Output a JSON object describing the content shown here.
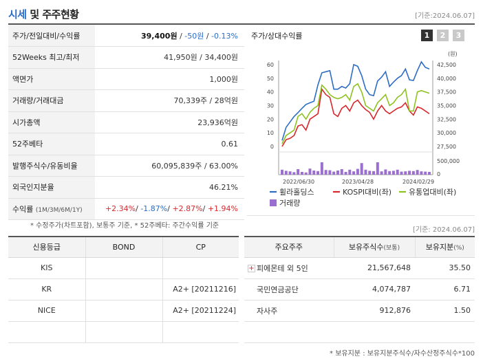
{
  "header": {
    "title_part1": "시세",
    "title_part2": " 및 주주현황",
    "base_date": "[기준:2024.06.07]"
  },
  "quote": {
    "price_label": "주가/전일대비/수익률",
    "price": "39,400원",
    "change": "-50원",
    "change_pct": "-0.13%",
    "week52_label": "52Weeks 최고/최저",
    "week52_value": "41,950원 / 34,400원",
    "face_label": "액면가",
    "face_value": "1,000원",
    "volume_label": "거래량/거래대금",
    "volume_value": "70,339주 / 28억원",
    "mcap_label": "시가총액",
    "mcap_value": "23,936억원",
    "beta_label": "52주베타",
    "beta_value": "0.61",
    "shares_label": "발행주식수/유동비율",
    "shares_value": "60,095,839주 / 63.00%",
    "foreign_label": "외국인지분율",
    "foreign_value": "46.21%",
    "returns_label": "수익률",
    "returns_sub": "(1M/3M/6M/1Y)",
    "returns": [
      "+2.34%",
      "-1.87%",
      "+2.87%",
      "+1.94%"
    ]
  },
  "chart_panel": {
    "title": "주가/상대수익률",
    "buttons": [
      "1",
      "2",
      "3"
    ]
  },
  "chart_data": {
    "type": "line",
    "title": "",
    "x_ticks": [
      "2022/06/30",
      "2023/04/28",
      "2024/02/29"
    ],
    "left_axis": {
      "label": "",
      "min": 0,
      "max": 60,
      "ticks": [
        "0",
        "10",
        "20",
        "30",
        "40",
        "50",
        "60"
      ]
    },
    "right_axis": {
      "label": "(원)",
      "min": 27500,
      "max": 42500,
      "ticks": [
        "27,500",
        "30,000",
        "32,500",
        "35,000",
        "37,500",
        "40,000",
        "42,500"
      ]
    },
    "volume_axis": {
      "ticks": [
        "0",
        "500,000"
      ]
    },
    "series": [
      {
        "name": "휠라홀딩스",
        "color": "#2b6cc4",
        "axis": "price",
        "values": [
          28600,
          31000,
          32000,
          33000,
          33700,
          34500,
          35200,
          35500,
          35800,
          38800,
          41000,
          41200,
          41400,
          38000,
          38000,
          38500,
          38200,
          39000,
          42500,
          42200,
          40500,
          38000,
          37000,
          36800,
          39500,
          40200,
          41200,
          38500,
          39300,
          40000,
          40500,
          41700,
          39700,
          39600,
          41400,
          43000,
          42000,
          41700
        ]
      },
      {
        "name": "KOSPI대비(좌)",
        "color": "#d8262b",
        "axis": "left",
        "values": [
          0,
          5,
          6,
          8,
          15,
          16,
          12,
          20,
          22,
          24,
          42,
          38,
          36,
          24,
          22,
          28,
          30,
          26,
          32,
          34,
          30,
          27,
          25,
          20,
          26,
          30,
          26,
          24,
          26,
          28,
          29,
          32,
          26,
          23,
          29,
          28,
          26,
          24
        ]
      },
      {
        "name": "유통업대비(좌)",
        "color": "#8dc21f",
        "axis": "left",
        "values": [
          2,
          8,
          10,
          12,
          22,
          24,
          20,
          25,
          28,
          30,
          45,
          42,
          38,
          36,
          35,
          36,
          38,
          34,
          44,
          46,
          40,
          30,
          28,
          26,
          32,
          35,
          38,
          30,
          32,
          36,
          38,
          42,
          26,
          26,
          40,
          41,
          40,
          39
        ]
      }
    ],
    "volume": {
      "name": "거래량",
      "color": "#9b6fcf",
      "values": [
        180000,
        140000,
        120000,
        90000,
        200000,
        100000,
        80000,
        220000,
        150000,
        130000,
        450000,
        170000,
        160000,
        110000,
        150000,
        200000,
        100000,
        180000,
        120000,
        210000,
        420000,
        180000,
        140000,
        130000,
        450000,
        120000,
        190000,
        130000,
        140000,
        180000,
        110000,
        120000,
        140000,
        130000,
        170000,
        120000,
        110000,
        100000
      ]
    },
    "legend_position": "bottom"
  },
  "notes": {
    "line1": "* 수정주가(차트포함), 보통주 기준, * 52주베타: 주간수익률 기준",
    "base_date_mid": "[기준: 2024.06.07]",
    "footer": "* 보유지분 : 보유지분주식수/자수산정주식수*100"
  },
  "credit": {
    "headers": [
      "신용등급",
      "BOND",
      "CP"
    ],
    "rows": [
      [
        "KIS",
        "",
        ""
      ],
      [
        "KR",
        "",
        "A2+ [20211216]"
      ],
      [
        "NICE",
        "",
        "A2+ [20211224]"
      ],
      [
        "",
        "",
        ""
      ]
    ]
  },
  "holders": {
    "headers": [
      "주요주주",
      "보유주식수",
      "(보통)",
      "보유지분",
      "(%)"
    ],
    "rows": [
      {
        "name": "피에몬테 외 5인",
        "shares": "21,567,648",
        "pct": "35.50",
        "expandable": true
      },
      {
        "name": "국민연금공단",
        "shares": "4,074,787",
        "pct": "6.71",
        "expandable": false
      },
      {
        "name": "자사주",
        "shares": "912,876",
        "pct": "1.50",
        "expandable": false
      },
      {
        "name": "",
        "shares": "",
        "pct": "",
        "expandable": false
      }
    ]
  }
}
